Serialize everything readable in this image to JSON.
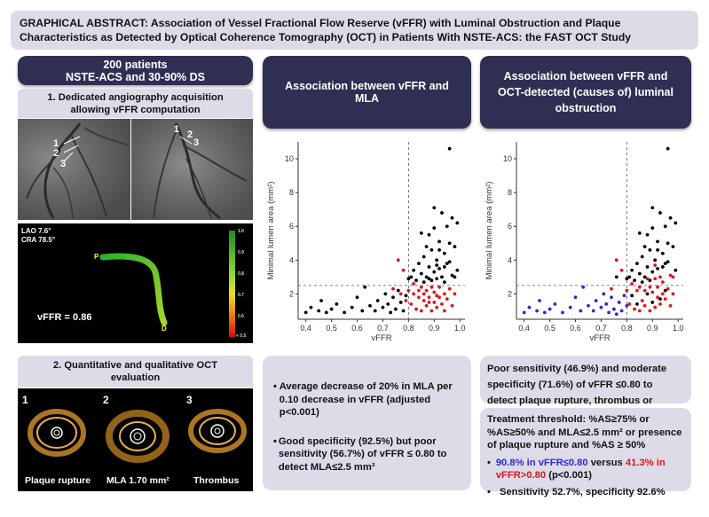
{
  "title": "GRAPHICAL ABSTRACT: Association of Vessel Fractional Flow Reserve (vFFR) with Luminal Obstruction and Plaque Characteristics as Detected by Optical Coherence Tomography (OCT) in Patients With NSTE-ACS: the FAST OCT Study",
  "left": {
    "patients_line1": "200 patients",
    "patients_line2": "NSTE-ACS and 30-90% DS",
    "step1": "1.  Dedicated angiography acquisition allowing vFFR computation",
    "angio_labels": [
      "1",
      "2",
      "3"
    ],
    "lao": "LAO 7.6°",
    "cra": "CRA 78.5°",
    "vffr_value": "vFFR = 0.86",
    "marker_p": "P",
    "marker_d": "D",
    "scale_top": "1.0",
    "scale_bottom": "< 0.5",
    "scale_ticks": [
      "0.9",
      "0.8",
      "0.7",
      "0.6"
    ],
    "step2": "2. Quantitative and qualitative OCT evaluation",
    "oct_panels": [
      {
        "num": "1",
        "caption": "Plaque rupture"
      },
      {
        "num": "2",
        "caption": "MLA 1.70 mm²"
      },
      {
        "num": "3",
        "caption": "Thrombus"
      }
    ]
  },
  "middle": {
    "header": "Association between vFFR and MLA",
    "bullets": [
      "Average decrease of 20% in MLA per 0.10 decrease in vFFR (adjusted p<0.001)",
      "Good specificity (92.5%) but poor sensitivity (56.7%) of vFFR ≤ 0.80 to detect MLA≤2.5 mm²"
    ]
  },
  "right": {
    "header": "Association between vFFR and OCT-detected (causes of) luminal obstruction",
    "box1": "Poor sensitivity (46.9%) and moderate specificity (71.6%) of vFFR ≤0.80 to detect plaque rupture, thrombus or erosion",
    "box2_head": "Treatment threshold: %AS≥75% or %AS≥50% and MLA≤2.5 mm² or presence of plaque rupture and %AS ≥ 50%",
    "box2_b1_blue": "90.8% in vFFR≤0.80",
    "box2_b1_mid": " versus ",
    "box2_b1_red": "41.3% in vFFR>0.80",
    "box2_b1_end": " (p<0.001)",
    "box2_b2": "Sensitivity 52.7%, specificity 92.6%"
  },
  "colors": {
    "navy": "#2e2f53",
    "lavender": "#dedbe8",
    "red": "#e0161c",
    "blue": "#2a2ad0",
    "black": "#000000"
  },
  "chart_data": [
    {
      "type": "scatter",
      "title": "",
      "xlabel": "vFFR",
      "ylabel": "Minimal lumen area (mm²)",
      "xlim": [
        0.37,
        1.02
      ],
      "ylim": [
        0.5,
        11
      ],
      "xticks": [
        0.4,
        0.5,
        0.6,
        0.7,
        0.8,
        0.9,
        1.0
      ],
      "yticks": [
        2,
        4,
        6,
        8,
        10
      ],
      "reference_lines": {
        "x": 0.8,
        "y": 2.5
      },
      "series": [
        {
          "color": "#000000",
          "points": [
            [
              0.4,
              0.9
            ],
            [
              0.42,
              1.2
            ],
            [
              0.45,
              1.0
            ],
            [
              0.46,
              1.6
            ],
            [
              0.48,
              0.9
            ],
            [
              0.5,
              1.1
            ],
            [
              0.52,
              1.4
            ],
            [
              0.55,
              0.9
            ],
            [
              0.58,
              1.2
            ],
            [
              0.6,
              1.8
            ],
            [
              0.62,
              1.0
            ],
            [
              0.63,
              2.4
            ],
            [
              0.65,
              1.3
            ],
            [
              0.67,
              1.0
            ],
            [
              0.68,
              1.6
            ],
            [
              0.7,
              1.2
            ],
            [
              0.71,
              2.0
            ],
            [
              0.72,
              1.4
            ],
            [
              0.73,
              0.9
            ],
            [
              0.74,
              1.8
            ],
            [
              0.75,
              1.1
            ],
            [
              0.76,
              2.2
            ],
            [
              0.77,
              1.5
            ],
            [
              0.78,
              1.0
            ],
            [
              0.79,
              1.9
            ],
            [
              0.8,
              2.9
            ],
            [
              0.81,
              3.0
            ],
            [
              0.82,
              3.4
            ],
            [
              0.83,
              2.8
            ],
            [
              0.84,
              3.8
            ],
            [
              0.85,
              3.2
            ],
            [
              0.86,
              2.7
            ],
            [
              0.86,
              4.2
            ],
            [
              0.87,
              3.0
            ],
            [
              0.88,
              3.6
            ],
            [
              0.88,
              5.5
            ],
            [
              0.89,
              2.8
            ],
            [
              0.89,
              4.6
            ],
            [
              0.9,
              3.3
            ],
            [
              0.9,
              7.1
            ],
            [
              0.91,
              4.0
            ],
            [
              0.91,
              2.9
            ],
            [
              0.92,
              5.1
            ],
            [
              0.92,
              3.5
            ],
            [
              0.93,
              6.8
            ],
            [
              0.93,
              3.0
            ],
            [
              0.94,
              4.4
            ],
            [
              0.94,
              2.7
            ],
            [
              0.95,
              6.0
            ],
            [
              0.95,
              3.8
            ],
            [
              0.96,
              10.6
            ],
            [
              0.96,
              5.0
            ],
            [
              0.97,
              6.5
            ],
            [
              0.97,
              3.1
            ],
            [
              0.98,
              4.8
            ],
            [
              0.99,
              3.4
            ],
            [
              0.99,
              6.2
            ],
            [
              0.85,
              5.6
            ],
            [
              0.87,
              4.8
            ],
            [
              0.9,
              5.9
            ],
            [
              0.92,
              4.6
            ],
            [
              0.94,
              3.6
            ],
            [
              0.96,
              3.9
            ],
            [
              0.98,
              3.0
            ],
            [
              0.88,
              2.9
            ],
            [
              0.91,
              3.7
            ]
          ]
        },
        {
          "color": "#e0161c",
          "points": [
            [
              0.74,
              2.3
            ],
            [
              0.76,
              4.0
            ],
            [
              0.77,
              2.0
            ],
            [
              0.78,
              3.4
            ],
            [
              0.79,
              1.6
            ],
            [
              0.8,
              2.2
            ],
            [
              0.81,
              1.4
            ],
            [
              0.82,
              2.0
            ],
            [
              0.83,
              1.1
            ],
            [
              0.84,
              1.8
            ],
            [
              0.85,
              2.4
            ],
            [
              0.85,
              1.0
            ],
            [
              0.86,
              1.6
            ],
            [
              0.87,
              2.2
            ],
            [
              0.87,
              1.3
            ],
            [
              0.88,
              1.8
            ],
            [
              0.89,
              2.4
            ],
            [
              0.89,
              1.0
            ],
            [
              0.9,
              1.5
            ],
            [
              0.9,
              2.1
            ],
            [
              0.91,
              1.2
            ],
            [
              0.92,
              1.8
            ],
            [
              0.92,
              2.4
            ],
            [
              0.93,
              1.4
            ],
            [
              0.94,
              2.0
            ],
            [
              0.94,
              1.0
            ],
            [
              0.95,
              1.7
            ],
            [
              0.96,
              2.3
            ],
            [
              0.97,
              1.3
            ],
            [
              0.98,
              2.0
            ],
            [
              0.82,
              2.6
            ],
            [
              0.84,
              2.2
            ],
            [
              0.86,
              2.0
            ],
            [
              0.88,
              1.5
            ],
            [
              0.91,
              1.9
            ]
          ]
        }
      ]
    },
    {
      "type": "scatter",
      "title": "",
      "xlabel": "vFFR",
      "ylabel": "Minimal lumen area (mm²)",
      "xlim": [
        0.37,
        1.02
      ],
      "ylim": [
        0.5,
        11
      ],
      "xticks": [
        0.4,
        0.5,
        0.6,
        0.7,
        0.8,
        0.9,
        1.0
      ],
      "yticks": [
        2,
        4,
        6,
        8,
        10
      ],
      "reference_lines": {
        "x": 0.8,
        "y": 2.5
      },
      "series": [
        {
          "color": "#2a2ad0",
          "points": [
            [
              0.4,
              0.9
            ],
            [
              0.42,
              1.2
            ],
            [
              0.45,
              1.0
            ],
            [
              0.46,
              1.6
            ],
            [
              0.48,
              0.9
            ],
            [
              0.5,
              1.1
            ],
            [
              0.52,
              1.4
            ],
            [
              0.55,
              0.9
            ],
            [
              0.58,
              1.2
            ],
            [
              0.6,
              1.8
            ],
            [
              0.62,
              1.0
            ],
            [
              0.63,
              2.4
            ],
            [
              0.65,
              1.3
            ],
            [
              0.67,
              1.0
            ],
            [
              0.68,
              1.6
            ],
            [
              0.7,
              1.2
            ],
            [
              0.71,
              2.0
            ],
            [
              0.72,
              1.4
            ],
            [
              0.73,
              0.9
            ],
            [
              0.74,
              1.8
            ],
            [
              0.75,
              1.1
            ],
            [
              0.77,
              1.5
            ],
            [
              0.78,
              1.0
            ],
            [
              0.79,
              1.9
            ],
            [
              0.8,
              1.3
            ],
            [
              0.76,
              0.8
            ]
          ]
        },
        {
          "color": "#000000",
          "points": [
            [
              0.76,
              3.0
            ],
            [
              0.8,
              2.9
            ],
            [
              0.81,
              3.0
            ],
            [
              0.82,
              3.4
            ],
            [
              0.83,
              2.8
            ],
            [
              0.84,
              3.8
            ],
            [
              0.85,
              3.2
            ],
            [
              0.86,
              2.7
            ],
            [
              0.86,
              4.2
            ],
            [
              0.87,
              3.0
            ],
            [
              0.88,
              3.6
            ],
            [
              0.88,
              5.5
            ],
            [
              0.89,
              2.8
            ],
            [
              0.89,
              4.6
            ],
            [
              0.9,
              3.3
            ],
            [
              0.9,
              7.1
            ],
            [
              0.91,
              4.0
            ],
            [
              0.92,
              5.1
            ],
            [
              0.92,
              3.5
            ],
            [
              0.93,
              6.8
            ],
            [
              0.94,
              4.4
            ],
            [
              0.95,
              6.0
            ],
            [
              0.95,
              3.8
            ],
            [
              0.96,
              10.6
            ],
            [
              0.96,
              5.0
            ],
            [
              0.97,
              6.5
            ],
            [
              0.98,
              4.8
            ],
            [
              0.99,
              3.4
            ],
            [
              0.99,
              6.2
            ],
            [
              0.85,
              5.6
            ],
            [
              0.87,
              4.8
            ],
            [
              0.9,
              5.9
            ],
            [
              0.92,
              4.6
            ],
            [
              0.94,
              3.6
            ],
            [
              0.96,
              3.9
            ],
            [
              0.82,
              1.9
            ],
            [
              0.84,
              1.4
            ],
            [
              0.88,
              2.0
            ],
            [
              0.9,
              1.5
            ],
            [
              0.93,
              1.7
            ],
            [
              0.95,
              2.2
            ]
          ]
        },
        {
          "color": "#e0161c",
          "points": [
            [
              0.74,
              2.3
            ],
            [
              0.76,
              4.0
            ],
            [
              0.78,
              3.4
            ],
            [
              0.8,
              2.2
            ],
            [
              0.81,
              1.4
            ],
            [
              0.82,
              2.6
            ],
            [
              0.83,
              1.1
            ],
            [
              0.84,
              2.2
            ],
            [
              0.85,
              2.4
            ],
            [
              0.85,
              1.0
            ],
            [
              0.86,
              1.6
            ],
            [
              0.87,
              2.2
            ],
            [
              0.87,
              1.3
            ],
            [
              0.88,
              2.9
            ],
            [
              0.89,
              2.4
            ],
            [
              0.89,
              1.0
            ],
            [
              0.9,
              2.1
            ],
            [
              0.91,
              1.2
            ],
            [
              0.91,
              3.7
            ],
            [
              0.92,
              1.8
            ],
            [
              0.92,
              2.4
            ],
            [
              0.93,
              1.4
            ],
            [
              0.93,
              3.0
            ],
            [
              0.94,
              2.0
            ],
            [
              0.94,
              2.7
            ],
            [
              0.95,
              1.7
            ],
            [
              0.96,
              2.3
            ],
            [
              0.97,
              1.3
            ],
            [
              0.97,
              3.1
            ],
            [
              0.98,
              2.0
            ],
            [
              0.98,
              3.0
            ],
            [
              0.91,
              2.9
            ]
          ]
        }
      ]
    }
  ]
}
